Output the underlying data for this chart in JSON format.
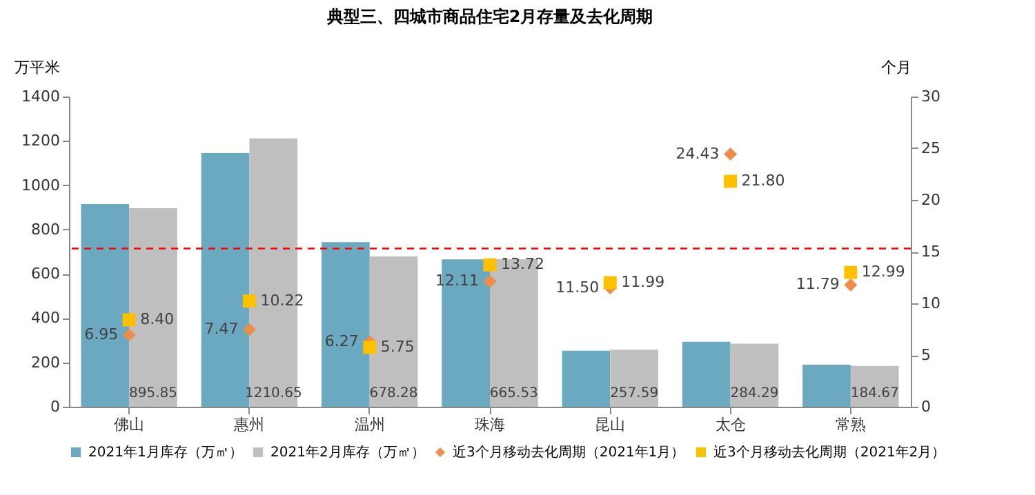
{
  "chart_data": {
    "type": "bar",
    "title": "典型三、四城市商品住宅2月存量及去化周期",
    "ylabel": "万平米",
    "y2label": "个月",
    "categories": [
      "佛山",
      "惠州",
      "温州",
      "珠海",
      "昆山",
      "太仓",
      "常熟"
    ],
    "series": [
      {
        "name": "2021年1月库存（万㎡）",
        "color": "#6aa9bf",
        "values": [
          915,
          1145,
          743,
          665,
          253,
          293,
          190
        ]
      },
      {
        "name": "2021年2月库存（万㎡）",
        "color": "#bfbfbf",
        "values": [
          895.85,
          1210.65,
          678.28,
          665.53,
          257.59,
          284.29,
          184.67
        ],
        "value_labels": [
          "895.85",
          "1210.65",
          "678.28",
          "665.53",
          "257.59",
          "284.29",
          "184.67"
        ]
      },
      {
        "name": "近3个月移动去化周期（2021年1月）",
        "type": "scatter",
        "axis": "y2",
        "marker": "diamond",
        "color": "#ed8d4a",
        "values": [
          6.95,
          7.47,
          6.27,
          12.11,
          11.5,
          24.43,
          11.79
        ],
        "value_labels": [
          "6.95",
          "7.47",
          "6.27",
          "12.11",
          "11.50",
          "24.43",
          "11.79"
        ]
      },
      {
        "name": "近3个月移动去化周期（2021年2月）",
        "type": "scatter",
        "axis": "y2",
        "marker": "square",
        "color": "#ffc000",
        "values": [
          8.4,
          10.22,
          5.75,
          13.72,
          11.99,
          21.8,
          12.99
        ],
        "value_labels": [
          "8.40",
          "10.22",
          "5.75",
          "13.72",
          "11.99",
          "21.80",
          "12.99"
        ]
      }
    ],
    "ylim": [
      0,
      1400
    ],
    "yticks": [
      0,
      200,
      400,
      600,
      800,
      1000,
      {
        "value": 1200,
        "label": "1200"
      },
      1400
    ],
    "y2lim": [
      0,
      30
    ],
    "y2ticks": [
      0,
      5,
      10,
      15,
      20,
      25,
      30
    ],
    "ref_lines": [
      {
        "axis": "y2",
        "value": 15.3,
        "color": "#ff0000",
        "line_style": "dashed"
      }
    ],
    "legend": "bottom",
    "grid": false
  }
}
